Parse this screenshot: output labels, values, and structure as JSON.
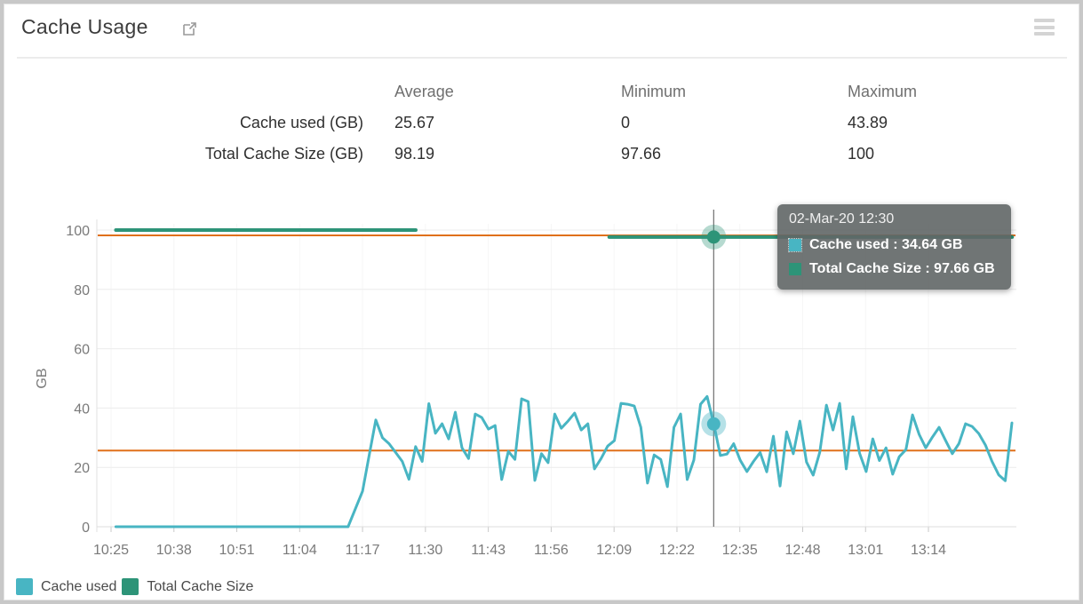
{
  "header": {
    "title": "Cache Usage",
    "external_link_icon": "open-in-new",
    "menu_icon": "hamburger-menu"
  },
  "stats_table": {
    "columns": [
      "Average",
      "Minimum",
      "Maximum"
    ],
    "rows": [
      {
        "label": "Cache used (GB)",
        "average": "25.67",
        "minimum": "0",
        "maximum": "43.89"
      },
      {
        "label": "Total Cache Size (GB)",
        "average": "98.19",
        "minimum": "97.66",
        "maximum": "100"
      }
    ]
  },
  "tooltip": {
    "datetime": "02-Mar-20 12:30",
    "rows": [
      {
        "text": "Cache used : 34.64 GB",
        "color": "#48b5c3"
      },
      {
        "text": "Total Cache Size : 97.66 GB",
        "color": "#2d9478"
      }
    ]
  },
  "legend": [
    {
      "label": "Cache used",
      "color": "#48b5c3"
    },
    {
      "label": "Total Cache Size",
      "color": "#2d9478"
    }
  ],
  "chart_data": {
    "type": "line",
    "ylabel": "GB",
    "ylim": [
      0,
      100
    ],
    "y_ticks": [
      0,
      20,
      40,
      60,
      80,
      100
    ],
    "x_tick_labels": [
      "10:25",
      "10:38",
      "10:51",
      "11:04",
      "11:17",
      "11:30",
      "11:43",
      "11:56",
      "12:09",
      "12:22",
      "12:35",
      "12:48",
      "13:01",
      "13:14"
    ],
    "x_tick_interval_min": 13,
    "grid": "horizontal",
    "legend_position": "bottom-left",
    "colors": {
      "average_line": "#e0701b",
      "crosshair": "#6f6f6f",
      "gridline": "#ececec",
      "axis": "#dcdcdc",
      "tick_label": "#7a7a7a"
    },
    "average_lines": [
      {
        "series": "Cache used",
        "value": 25.67
      },
      {
        "series": "Total Cache Size",
        "value": 98.19
      }
    ],
    "cursor": {
      "time_label": "12:30",
      "t_min_from_10_25": 124.6,
      "values": {
        "cache_used_gb": 34.64,
        "total_cache_size_gb": 97.66
      }
    },
    "series": [
      {
        "name": "Cache used",
        "color": "#48b5c3",
        "unit": "GB",
        "stats": {
          "average": 25.67,
          "minimum": 0,
          "maximum": 43.89
        },
        "zero_segment": {
          "t_start": 1,
          "t_end": 49,
          "t_step": 4,
          "value": 0
        },
        "osc_t_start": 52,
        "osc_t_step": 1.37,
        "osc_values": [
          12,
          24,
          36,
          30,
          28,
          25,
          22,
          16,
          27,
          22,
          41.5,
          31.5,
          34.7,
          29.6,
          38.6,
          26.6,
          23,
          38,
          36.8,
          32.9,
          34.1,
          15.9,
          25.4,
          22.7,
          43.1,
          42.2,
          15.6,
          24.6,
          21.6,
          38,
          33.2,
          35.6,
          38.3,
          32.6,
          34.7,
          19.5,
          23,
          27.2,
          29,
          41.6,
          41.3,
          40.7,
          33.5,
          14.7,
          24.2,
          22.7,
          13.5,
          33.5,
          38,
          15.9,
          22.5,
          41.3,
          43.89,
          34.64,
          24,
          24.5,
          28,
          22.4,
          18.6,
          22,
          25,
          18.5,
          30.5,
          13.7,
          32,
          24.6,
          35.6,
          21.8,
          17.4,
          25.1,
          41,
          32.6,
          41.6,
          19.5,
          37.1,
          24.8,
          18.6,
          29.6,
          22.3,
          26.6,
          17.7,
          23.6,
          26,
          37.7,
          31.1,
          26.6,
          30.2,
          33.5,
          29,
          24.6,
          28,
          34.7,
          33.8,
          31.4,
          27.5,
          22,
          17.5,
          15.5,
          35
        ]
      },
      {
        "name": "Total Cache Size",
        "color": "#2d9478",
        "unit": "GB",
        "stats": {
          "average": 98.19,
          "minimum": 97.66,
          "maximum": 100
        },
        "segments": [
          {
            "t_start": 1,
            "t_end": 63,
            "value": 100
          },
          {
            "t_start": 103,
            "t_end": 186.3,
            "value": 97.66
          }
        ]
      }
    ]
  }
}
